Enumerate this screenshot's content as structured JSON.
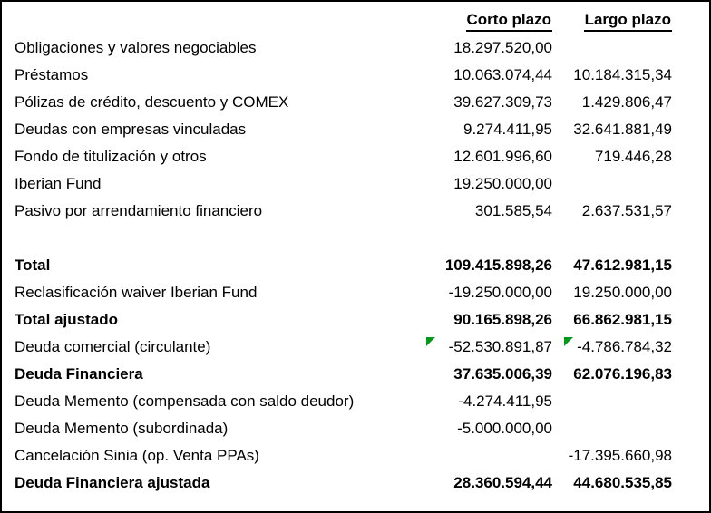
{
  "page": {
    "background_color": "#ffffff",
    "border_color": "#000000"
  },
  "table": {
    "indicator_color": "#009a1a",
    "columns": [
      "Corto plazo",
      "Largo plazo"
    ],
    "rows": [
      {
        "label": "Obligaciones y valores negociables",
        "corto": "18.297.520,00",
        "largo": "",
        "bold": false
      },
      {
        "label": "Préstamos",
        "corto": "10.063.074,44",
        "largo": "10.184.315,34",
        "bold": false
      },
      {
        "label": "Pólizas de crédito, descuento y COMEX",
        "corto": "39.627.309,73",
        "largo": "1.429.806,47",
        "bold": false
      },
      {
        "label": "Deudas con empresas vinculadas",
        "corto": "9.274.411,95",
        "largo": "32.641.881,49",
        "bold": false
      },
      {
        "label": "Fondo de titulización y otros",
        "corto": "12.601.996,60",
        "largo": "719.446,28",
        "bold": false
      },
      {
        "label": "Iberian Fund",
        "corto": "19.250.000,00",
        "largo": "",
        "bold": false
      },
      {
        "label": "Pasivo por arrendamiento financiero",
        "corto": "301.585,54",
        "largo": "2.637.531,57",
        "bold": false
      },
      {
        "label": "",
        "corto": "",
        "largo": "",
        "bold": false,
        "spacer": true
      },
      {
        "label": "Total",
        "corto": "109.415.898,26",
        "largo": "47.612.981,15",
        "bold": true
      },
      {
        "label": "Reclasificación waiver Iberian Fund",
        "corto": "-19.250.000,00",
        "largo": "19.250.000,00",
        "bold": false
      },
      {
        "label": "Total ajustado",
        "corto": "90.165.898,26",
        "largo": "66.862.981,15",
        "bold": true
      },
      {
        "label": "Deuda comercial (circulante)",
        "corto": "-52.530.891,87",
        "largo": "-4.786.784,32",
        "bold": false,
        "corto_flag": true,
        "largo_flag": true
      },
      {
        "label": "Deuda Financiera",
        "corto": "37.635.006,39",
        "largo": "62.076.196,83",
        "bold": true
      },
      {
        "label": "Deuda Memento (compensada con saldo deudor)",
        "corto": "-4.274.411,95",
        "largo": "",
        "bold": false
      },
      {
        "label": "Deuda Memento (subordinada)",
        "corto": "-5.000.000,00",
        "largo": "",
        "bold": false
      },
      {
        "label": "Cancelación Sinia (op. Venta PPAs)",
        "corto": "",
        "largo": "-17.395.660,98",
        "bold": false
      },
      {
        "label": "Deuda Financiera ajustada",
        "corto": "28.360.594,44",
        "largo": "44.680.535,85",
        "bold": true
      }
    ]
  }
}
